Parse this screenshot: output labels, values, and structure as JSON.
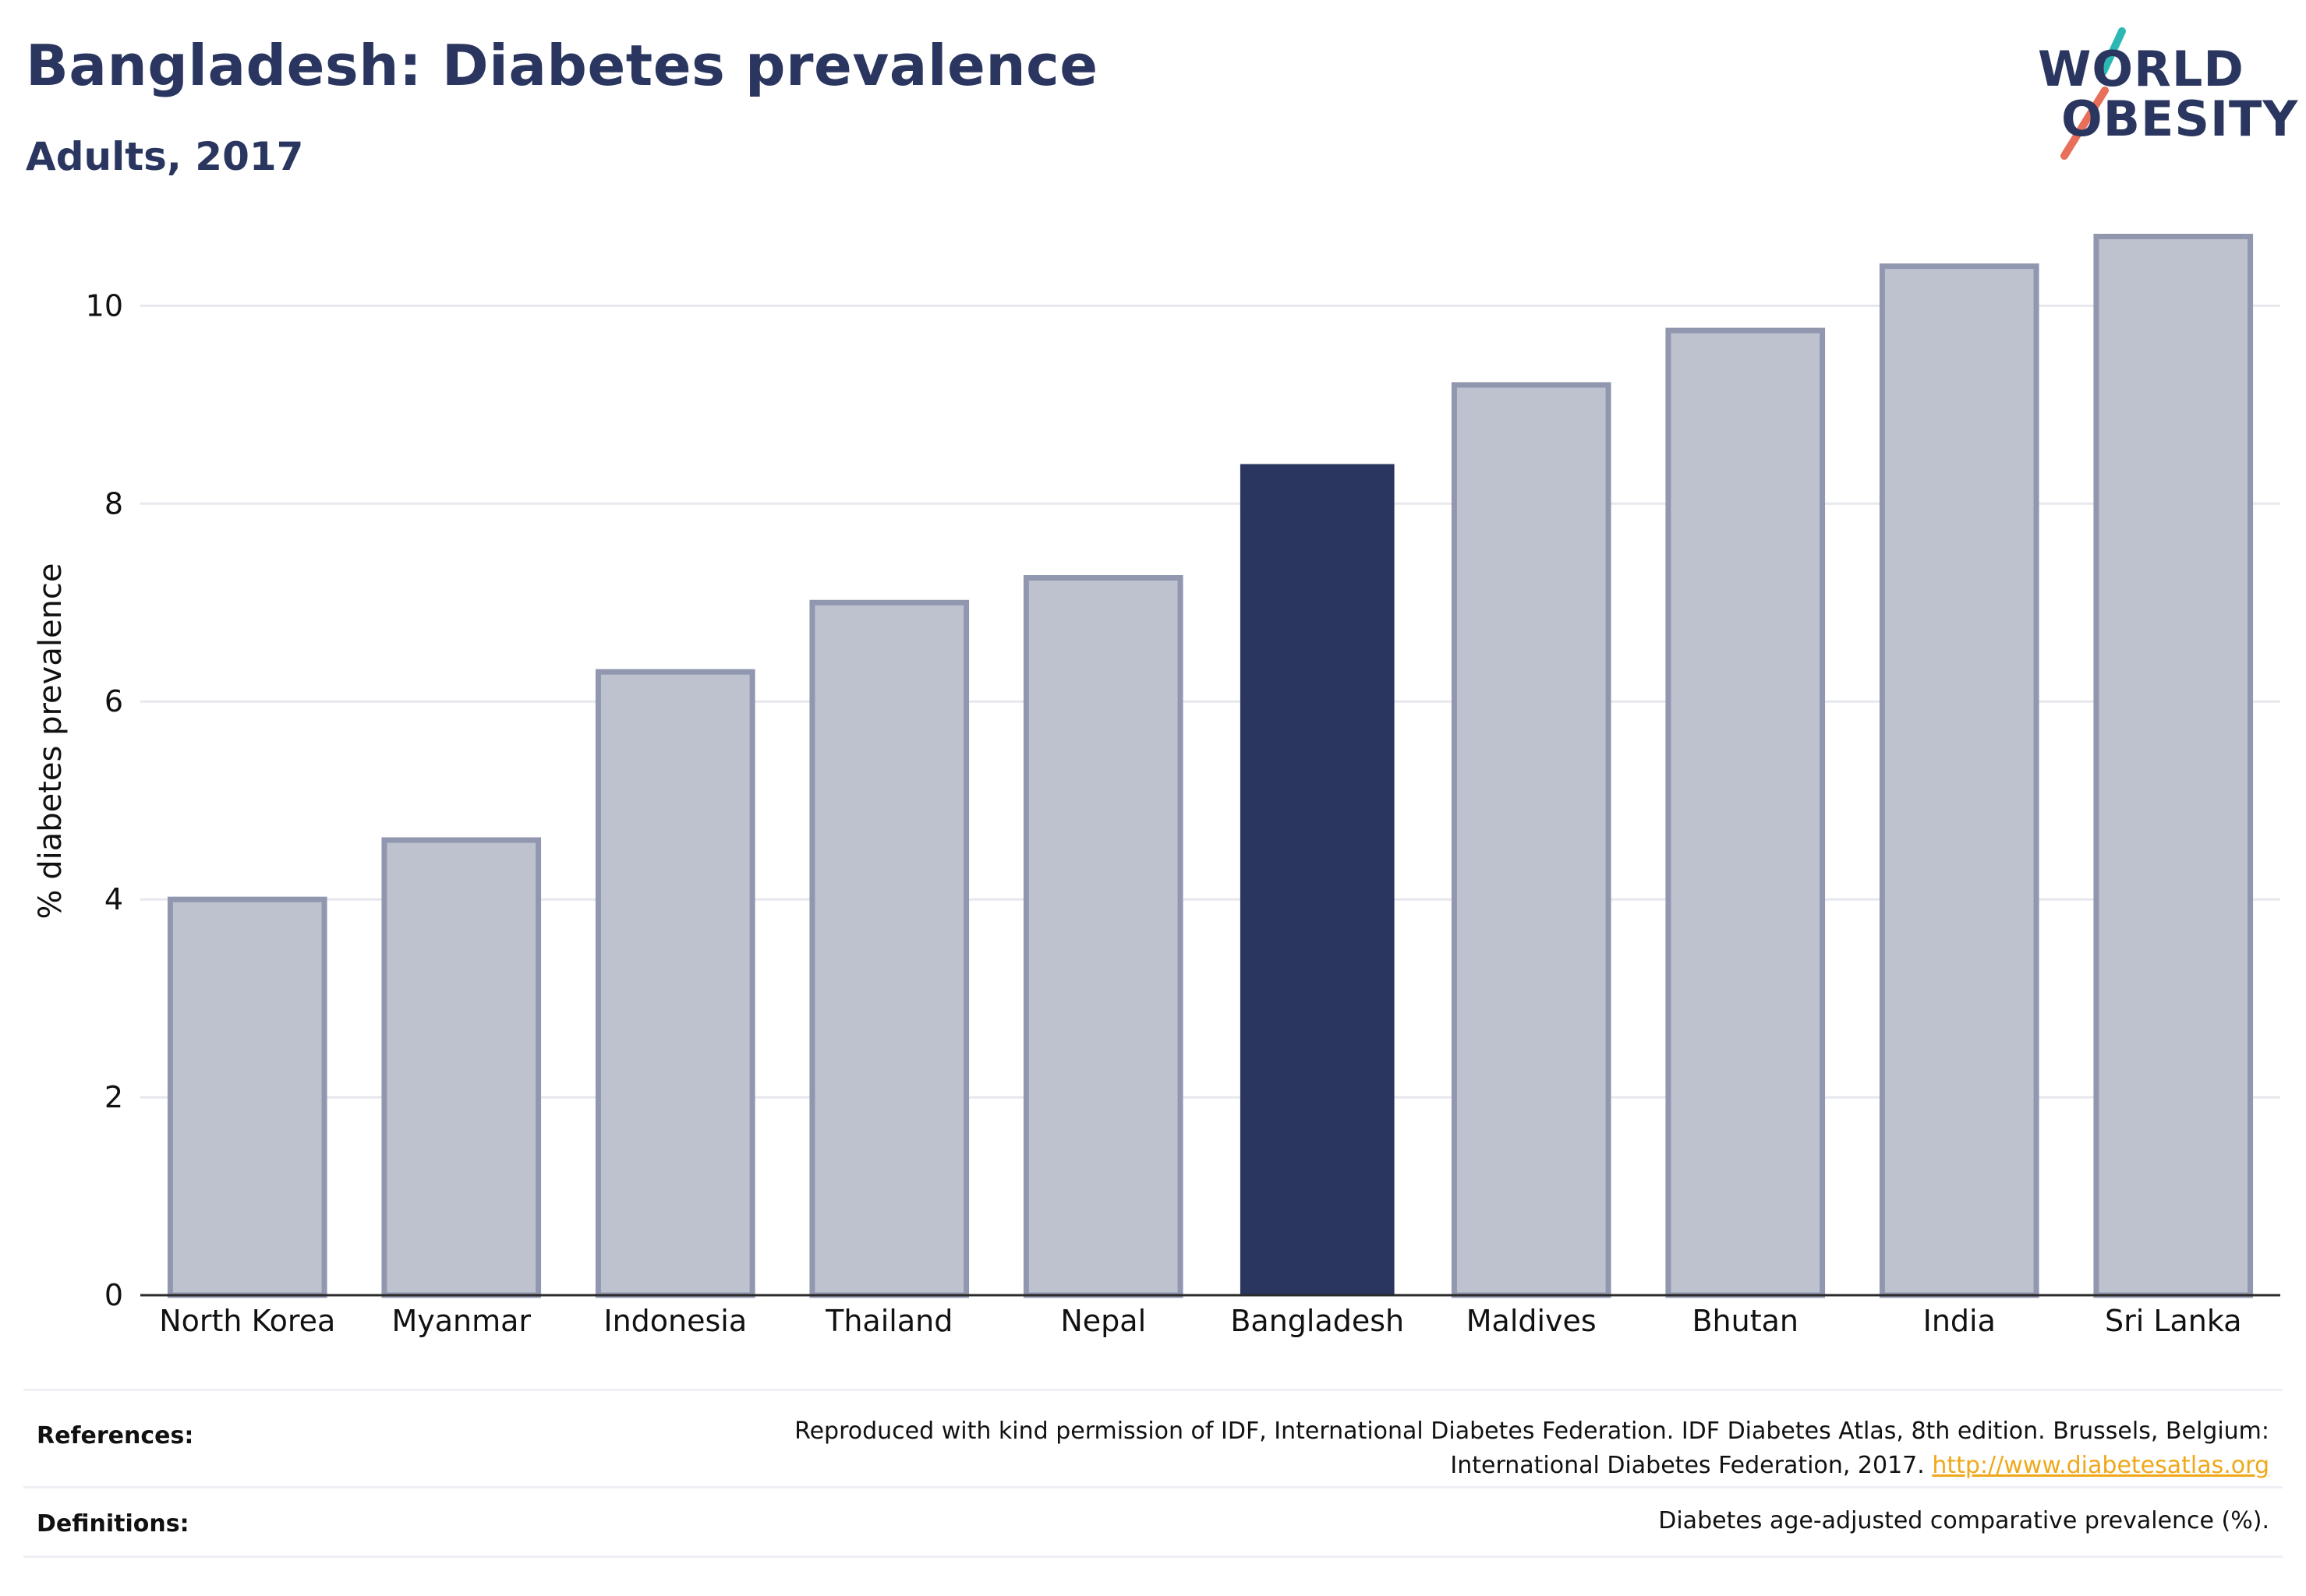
{
  "header": {
    "title": "Bangladesh: Diabetes prevalence",
    "subtitle": "Adults, 2017"
  },
  "logo": {
    "line1": "WORLD",
    "line2": "OBESITY",
    "slash_colors": [
      "#2cb9b4",
      "#e8705a"
    ]
  },
  "chart_data": {
    "type": "bar",
    "categories": [
      "North Korea",
      "Myanmar",
      "Indonesia",
      "Thailand",
      "Nepal",
      "Bangladesh",
      "Maldives",
      "Bhutan",
      "India",
      "Sri Lanka"
    ],
    "values": [
      4.0,
      4.6,
      6.3,
      7.0,
      7.25,
      8.4,
      9.2,
      9.75,
      10.4,
      10.7
    ],
    "highlight": "Bangladesh",
    "ylabel": "% diabetes prevalence",
    "xlabel": "",
    "ylim": [
      0,
      11.2
    ],
    "yticks": [
      0,
      2,
      4,
      6,
      8,
      10
    ],
    "grid": true,
    "colors": {
      "highlight": "#2a365f",
      "other_fill": "#bec2cf",
      "other_stroke": "#9097af"
    }
  },
  "footer": {
    "references_label": "References:",
    "references_line1": "Reproduced with kind permission of IDF, International Diabetes Federation. IDF Diabetes Atlas, 8th edition. Brussels, Belgium:",
    "references_line2": "International Diabetes Federation, 2017.",
    "references_link": "http://www.diabetesatlas.org",
    "definitions_label": "Definitions:",
    "definitions_text": "Diabetes age-adjusted comparative prevalence (%)."
  }
}
